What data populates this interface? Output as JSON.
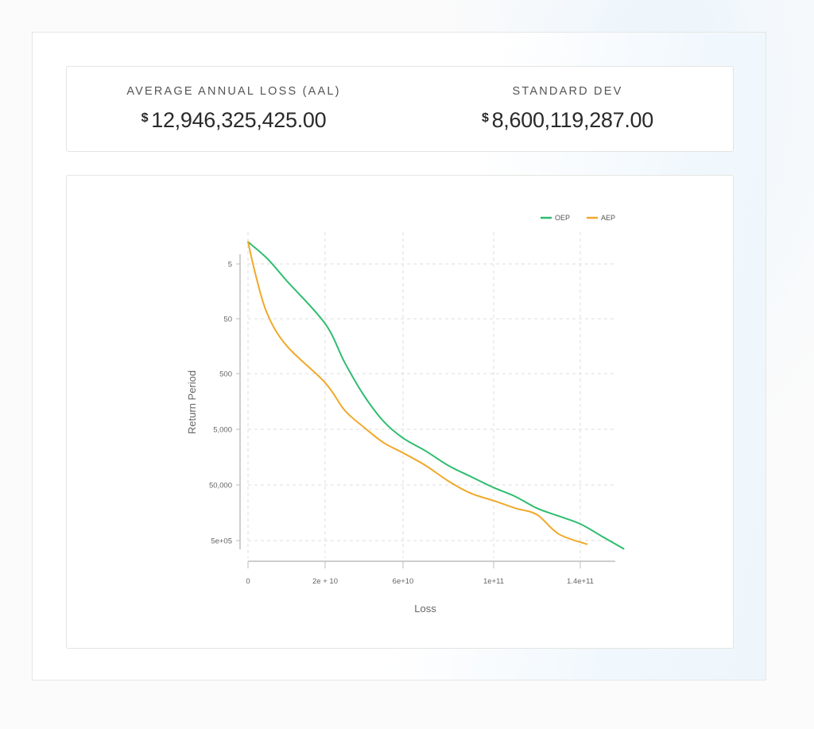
{
  "stats": {
    "aal": {
      "label": "AVERAGE ANNUAL LOSS (AAL)",
      "currency": "$",
      "value": "12,946,325,425.00"
    },
    "std_dev": {
      "label": "STANDARD DEV",
      "currency": "$",
      "value": "8,600,119,287.00"
    }
  },
  "colors": {
    "oep": "#2dbd6e",
    "aep": "#f0a92a",
    "grid": "#dedede",
    "axis": "#bdbdbd",
    "tick_text": "#666666"
  },
  "chart_data": {
    "type": "line",
    "title": "",
    "xlabel": "Loss",
    "ylabel": "Return Period",
    "x_ticks": [
      "0",
      "2e + 10",
      "6e+10",
      "1e+11",
      "1.4e+11"
    ],
    "y_ticks": [
      "5",
      "50",
      "500",
      "5,000",
      "50,000",
      "5e+05"
    ],
    "y_scale": "log",
    "xlim": [
      0,
      160000000000.0
    ],
    "ylim": [
      1,
      1000000
    ],
    "grid": true,
    "legend": {
      "position": "top-right",
      "entries": [
        "OEP",
        "AEP"
      ]
    },
    "series": [
      {
        "name": "OEP",
        "color": "#2dbd6e",
        "points": [
          [
            0,
            2
          ],
          [
            5000000000.0,
            4
          ],
          [
            10000000000.0,
            10
          ],
          [
            20000000000.0,
            60
          ],
          [
            30000000000.0,
            300
          ],
          [
            40000000000.0,
            1200
          ],
          [
            50000000000.0,
            3500
          ],
          [
            60000000000.0,
            7000
          ],
          [
            70000000000.0,
            12000
          ],
          [
            80000000000.0,
            22000
          ],
          [
            90000000000.0,
            35000
          ],
          [
            100000000000.0,
            55000
          ],
          [
            110000000000.0,
            80000
          ],
          [
            120000000000.0,
            130000
          ],
          [
            130000000000.0,
            180000
          ],
          [
            140000000000.0,
            250000
          ],
          [
            150000000000.0,
            420000
          ],
          [
            160000000000.0,
            700000
          ]
        ]
      },
      {
        "name": "AEP",
        "color": "#f0a92a",
        "points": [
          [
            0,
            2
          ],
          [
            2000000000.0,
            8
          ],
          [
            5000000000.0,
            40
          ],
          [
            10000000000.0,
            150
          ],
          [
            20000000000.0,
            700
          ],
          [
            30000000000.0,
            2200
          ],
          [
            40000000000.0,
            4500
          ],
          [
            50000000000.0,
            8500
          ],
          [
            60000000000.0,
            13000
          ],
          [
            70000000000.0,
            22000
          ],
          [
            80000000000.0,
            42000
          ],
          [
            90000000000.0,
            70000
          ],
          [
            100000000000.0,
            95000
          ],
          [
            110000000000.0,
            130000
          ],
          [
            120000000000.0,
            170000
          ],
          [
            130000000000.0,
            380000
          ],
          [
            143000000000.0,
            580000
          ]
        ]
      }
    ]
  }
}
